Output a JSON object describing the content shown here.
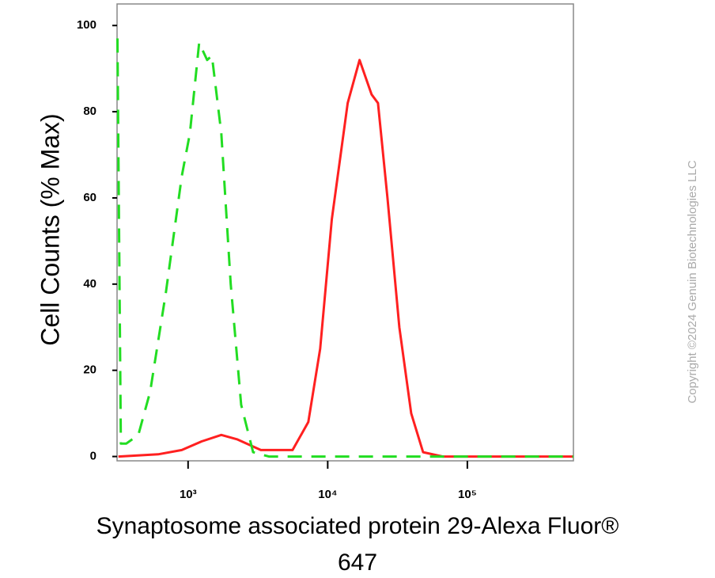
{
  "chart_data": {
    "type": "line",
    "y_label": "Cell Counts (% Max)",
    "x_label": [
      "Synaptosome associated protein 29-Alexa Fluor®",
      "647"
    ],
    "watermark": "Copyright ©2024 Genuin Biotechnologies LLC",
    "x_scale": "log",
    "xlim": [
      310,
      575000
    ],
    "xticks": [
      {
        "value": 1000,
        "label": "10³"
      },
      {
        "value": 10000,
        "label": "10⁴"
      },
      {
        "value": 100000,
        "label": "10⁵"
      }
    ],
    "ylim": [
      -1,
      105
    ],
    "yticks": [
      0,
      20,
      40,
      60,
      80,
      100
    ],
    "series": [
      {
        "color": "#ff2020",
        "dashed": false,
        "x": [
          317,
          610,
          901,
          1250,
          1730,
          2240,
          3320,
          5600,
          7260,
          8830,
          10700,
          13900,
          16900,
          20600,
          22900,
          26800,
          32600,
          39600,
          48200,
          66700,
          575000
        ],
        "values": [
          0,
          0.5,
          1.5,
          3.5,
          5,
          4,
          1.5,
          1.5,
          8,
          25,
          55,
          82,
          92,
          84,
          82,
          60,
          30,
          10,
          1,
          0,
          0
        ]
      },
      {
        "color": "#22dd22",
        "dashed": true,
        "x": [
          312,
          330,
          361,
          440,
          535,
          693,
          901,
          1030,
          1200,
          1370,
          1480,
          1730,
          2020,
          2400,
          2920,
          3790,
          575000
        ],
        "values": [
          97,
          3,
          3,
          5,
          15,
          38,
          65,
          75,
          96,
          92,
          93,
          75,
          40,
          12,
          1,
          0,
          0
        ]
      }
    ]
  }
}
